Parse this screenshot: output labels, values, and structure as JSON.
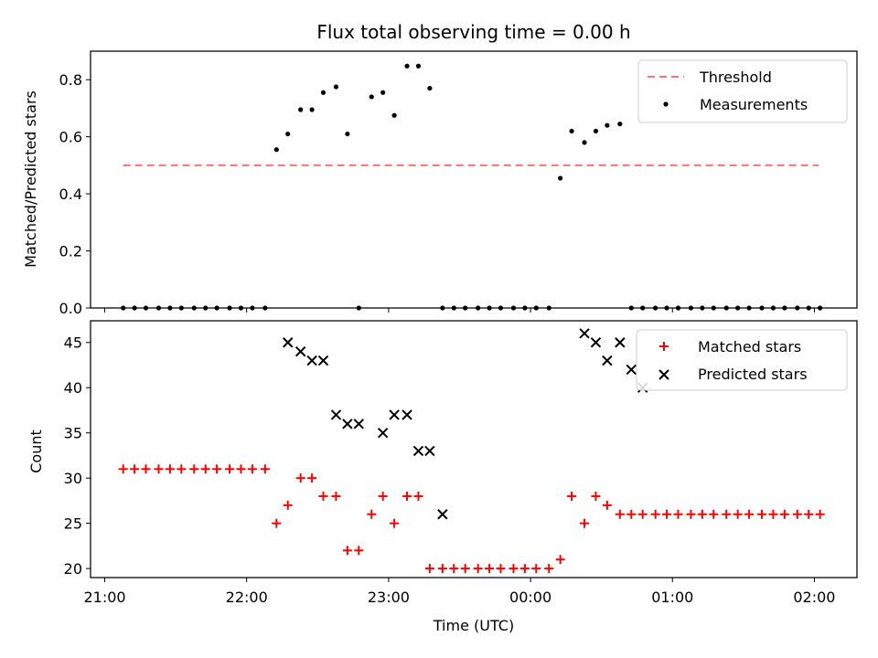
{
  "chart_data": [
    {
      "type": "scatter",
      "title": "Flux total observing time = 0.00 h",
      "xlabel": "",
      "ylabel": "Matched/Predicted stars",
      "ylim": [
        0,
        0.9
      ],
      "yticks": [
        "0.0",
        "0.2",
        "0.4",
        "0.6",
        "0.8"
      ],
      "xlim_hours": [
        20.9,
        26.3
      ],
      "legend_position": "top-right",
      "legend": [
        "Threshold",
        "Measurements"
      ],
      "threshold": {
        "name": "Threshold",
        "y": 0.5,
        "x_start": 21.13,
        "x_end": 26.03,
        "color": "#ff7070"
      },
      "series": [
        {
          "name": "Measurements",
          "x": [
            21.13,
            21.21,
            21.29,
            21.38,
            21.46,
            21.54,
            21.63,
            21.71,
            21.79,
            21.88,
            21.96,
            22.04,
            22.13,
            22.21,
            22.29,
            22.38,
            22.46,
            22.54,
            22.63,
            22.71,
            22.79,
            22.88,
            22.96,
            23.04,
            23.13,
            23.21,
            23.29,
            23.38,
            23.46,
            23.54,
            23.63,
            23.71,
            23.79,
            23.88,
            23.96,
            24.04,
            24.13,
            24.21,
            24.29,
            24.38,
            24.46,
            24.54,
            24.63,
            24.71,
            24.79,
            24.88,
            24.96,
            25.04,
            25.13,
            25.21,
            25.29,
            25.38,
            25.46,
            25.54,
            25.63,
            25.71,
            25.79,
            25.88,
            25.96,
            26.04
          ],
          "y": [
            0,
            0,
            0,
            0,
            0,
            0,
            0,
            0,
            0,
            0,
            0,
            0,
            0,
            0.555,
            0.61,
            0.695,
            0.695,
            0.755,
            0.775,
            0.61,
            0,
            0.74,
            0.755,
            0.675,
            0.848,
            0.848,
            0.77,
            0,
            0,
            0,
            0,
            0,
            0,
            0,
            0,
            0,
            0,
            0.455,
            0.62,
            0.58,
            0.62,
            0.64,
            0.645,
            0,
            0,
            0,
            0,
            0,
            0,
            0,
            0,
            0,
            0,
            0,
            0,
            0,
            0,
            0,
            0,
            0
          ]
        }
      ]
    },
    {
      "type": "scatter",
      "title": "",
      "xlabel": "Time (UTC)",
      "ylabel": "Count",
      "ylim": [
        19,
        47.4
      ],
      "yticks": [
        "20",
        "25",
        "30",
        "35",
        "40",
        "45"
      ],
      "xticks": [
        "21:00",
        "22:00",
        "23:00",
        "00:00",
        "01:00",
        "02:00"
      ],
      "xlim_hours": [
        20.9,
        26.3
      ],
      "legend_position": "top-right",
      "legend": [
        "Matched stars",
        "Predicted stars"
      ],
      "series": [
        {
          "name": "Matched stars",
          "marker": "+",
          "color": "#ff0000",
          "x": [
            21.13,
            21.21,
            21.29,
            21.38,
            21.46,
            21.54,
            21.63,
            21.71,
            21.79,
            21.88,
            21.96,
            22.04,
            22.13,
            22.21,
            22.29,
            22.38,
            22.46,
            22.54,
            22.63,
            22.71,
            22.79,
            22.88,
            22.96,
            23.04,
            23.13,
            23.21,
            23.29,
            23.38,
            23.46,
            23.54,
            23.63,
            23.71,
            23.79,
            23.88,
            23.96,
            24.04,
            24.13,
            24.21,
            24.29,
            24.38,
            24.46,
            24.54,
            24.63,
            24.71,
            24.79,
            24.88,
            24.96,
            25.04,
            25.13,
            25.21,
            25.29,
            25.38,
            25.46,
            25.54,
            25.63,
            25.71,
            25.79,
            25.88,
            25.96,
            26.04
          ],
          "y": [
            31,
            31,
            31,
            31,
            31,
            31,
            31,
            31,
            31,
            31,
            31,
            31,
            31,
            25,
            27,
            30,
            30,
            28,
            28,
            22,
            22,
            26,
            28,
            25,
            28,
            28,
            20,
            20,
            20,
            20,
            20,
            20,
            20,
            20,
            20,
            20,
            20,
            21,
            28,
            25,
            28,
            27,
            26,
            26,
            26,
            26,
            26,
            26,
            26,
            26,
            26,
            26,
            26,
            26,
            26,
            26,
            26,
            26,
            26,
            26
          ]
        },
        {
          "name": "Predicted stars",
          "marker": "x",
          "color": "#000000",
          "x": [
            22.29,
            22.38,
            22.46,
            22.54,
            22.63,
            22.71,
            22.79,
            22.96,
            23.04,
            23.13,
            23.21,
            23.29,
            23.38,
            24.38,
            24.46,
            24.54,
            24.63,
            24.71,
            24.79
          ],
          "y": [
            45,
            44,
            43,
            43,
            37,
            36,
            36,
            35,
            37,
            37,
            33,
            33,
            26,
            46,
            45,
            43,
            45,
            42,
            40
          ]
        }
      ]
    }
  ]
}
